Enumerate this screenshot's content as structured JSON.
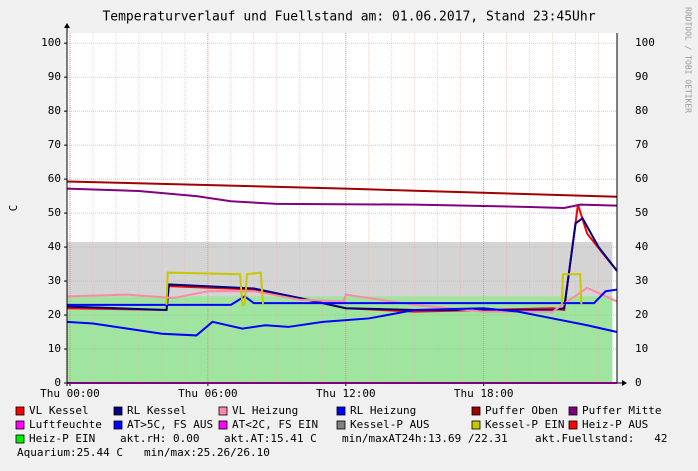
{
  "chart_data": {
    "type": "line",
    "title": "Temperaturverlauf und Fuellstand am: 01.06.2017, Stand 23:45Uhr",
    "y_label": "C",
    "watermark": "RRDTOOL / TOBI OETIKER",
    "xlim": [
      -0.13,
      23.8
    ],
    "xticks": [
      {
        "value": 0,
        "label": "Thu 00:00"
      },
      {
        "value": 6,
        "label": "Thu 06:00"
      },
      {
        "value": 12,
        "label": "Thu 12:00"
      },
      {
        "value": 18,
        "label": "Thu 18:00"
      }
    ],
    "ylim": [
      0,
      103
    ],
    "yticks": [
      0,
      10,
      20,
      30,
      40,
      50,
      60,
      70,
      80,
      90,
      100
    ],
    "grid": true,
    "series": [
      {
        "name": "VL Kessel",
        "color": "#ff0000",
        "kind": "line",
        "x": [
          -0.13,
          4.2,
          4.3,
          8,
          10,
          12,
          15,
          21,
          21.5,
          22.1,
          22.5,
          23.2,
          23.8
        ],
        "values": [
          22,
          21.5,
          28.5,
          27.5,
          25,
          22,
          21,
          22,
          21.5,
          52.5,
          44,
          38,
          33
        ]
      },
      {
        "name": "RL Kessel",
        "color": "#000080",
        "kind": "line",
        "x": [
          -0.13,
          4.2,
          4.3,
          8,
          10,
          12,
          15,
          21,
          21.5,
          22,
          22.3,
          23,
          23.8
        ],
        "values": [
          22.5,
          21.5,
          29,
          27.8,
          25,
          22,
          21.5,
          21.5,
          22,
          47,
          48.5,
          40,
          33
        ]
      },
      {
        "name": "VL Heizung",
        "color": "#ff88aa",
        "kind": "line",
        "x": [
          -0.13,
          2.5,
          4.5,
          6,
          8,
          10,
          11.9,
          12,
          15,
          18,
          21,
          22.5,
          23.8
        ],
        "values": [
          25.5,
          26,
          25,
          27,
          27,
          24.5,
          24,
          26,
          23,
          21,
          21,
          28,
          24
        ]
      },
      {
        "name": "RL Heizung",
        "color": "#0000ff",
        "kind": "line",
        "x": [
          -0.13,
          1,
          2.5,
          4,
          5.5,
          6.2,
          7.5,
          8.5,
          9.5,
          11,
          13,
          15,
          18,
          19.5,
          21,
          22.5,
          23.8
        ],
        "values": [
          18,
          17.5,
          16,
          14.5,
          14,
          18,
          16,
          17,
          16.5,
          18,
          19,
          21.5,
          22,
          21,
          19,
          17,
          15
        ]
      },
      {
        "name": "Puffer Oben",
        "color": "#a00000",
        "kind": "line",
        "x": [
          -0.13,
          12,
          23.8
        ],
        "values": [
          59.3,
          57.2,
          54.8
        ]
      },
      {
        "name": "Puffer Mitte",
        "color": "#800080",
        "kind": "line",
        "x": [
          -0.13,
          3,
          5.5,
          7,
          9,
          15,
          20,
          21.5,
          22.2,
          23.8
        ],
        "values": [
          57.2,
          56.5,
          55,
          53.5,
          52.7,
          52.5,
          51.8,
          51.5,
          52.5,
          52.2
        ]
      },
      {
        "name": "Luftfeuchte",
        "color": "#ff00ff",
        "kind": "line",
        "x": [
          -0.13,
          23.8
        ],
        "values": [
          0,
          0
        ]
      },
      {
        "name": "AT>5C, FS AUS",
        "color": "#0000ff",
        "kind": "line",
        "x": [
          -0.13,
          7,
          7.6,
          8,
          9,
          12,
          18,
          21,
          22.8,
          23.3,
          23.8
        ],
        "values": [
          23,
          23,
          25.5,
          23.5,
          23.5,
          23.5,
          23.5,
          23.5,
          23.5,
          27,
          27.5
        ]
      },
      {
        "name": "AT<2C, FS EIN",
        "color": "#ff00ff"
      },
      {
        "name": "Kessel-P AUS",
        "color": "#808080",
        "fill": "#d4d4d4",
        "kind": "area",
        "x": [
          -0.13,
          23.6
        ],
        "values": [
          41.5,
          41.5
        ]
      },
      {
        "name": "Kessel-P EIN",
        "color": "#c8c800",
        "kind": "line",
        "x": [
          4.2,
          4.25,
          7.4,
          7.5,
          7.6,
          7.7,
          8.3,
          8.4,
          12,
          21.4,
          21.45,
          22.2,
          22.25
        ],
        "values": [
          23,
          32.5,
          32,
          23,
          23,
          32,
          32.5,
          23,
          null,
          23,
          32,
          32,
          23
        ]
      },
      {
        "name": "Heiz-P AUS",
        "color": "#ff0000"
      },
      {
        "name": "Heiz-P EIN",
        "color": "#00ee00",
        "fill": "#9fe49f",
        "kind": "area",
        "x": [
          -0.13,
          23.6
        ],
        "values": [
          25.5,
          25.5
        ]
      }
    ],
    "info": [
      "akt.rH: 0.00",
      "akt.AT:15.41 C",
      "min/maxAT24h:13.69 /22.31",
      "akt.Fuellstand:   42",
      "Aquarium:25.44 C",
      "min/max:25.26/26.10"
    ]
  }
}
